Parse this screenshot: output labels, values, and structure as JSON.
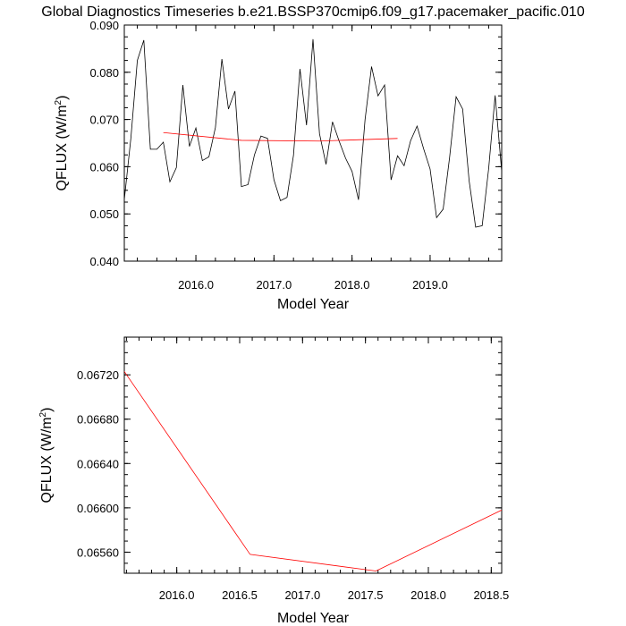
{
  "chart_data": [
    {
      "type": "line",
      "title": "Global Diagnostics Timeseries b.e21.BSSP370cmip6.f09_g17.pacemaker_pacific.010",
      "xlabel": "Model Year",
      "ylabel": "QFLUX (W/m",
      "ylabel_sup": "2",
      "ylabel_close": ")",
      "xlim": [
        2015.083,
        2019.917
      ],
      "ylim": [
        0.04,
        0.09
      ],
      "xticks": [
        2016.0,
        2017.0,
        2018.0,
        2019.0
      ],
      "xtick_labels": [
        "2016.0",
        "2017.0",
        "2018.0",
        "2019.0"
      ],
      "yticks": [
        0.04,
        0.05,
        0.06,
        0.07,
        0.08,
        0.09
      ],
      "ytick_labels": [
        "0.040",
        "0.050",
        "0.060",
        "0.070",
        "0.080",
        "0.090"
      ],
      "series": [
        {
          "color": "#000000",
          "x": [
            2015.083,
            2015.167,
            2015.25,
            2015.333,
            2015.417,
            2015.5,
            2015.583,
            2015.667,
            2015.75,
            2015.833,
            2015.917,
            2016.0,
            2016.083,
            2016.167,
            2016.25,
            2016.333,
            2016.417,
            2016.5,
            2016.583,
            2016.667,
            2016.75,
            2016.833,
            2016.917,
            2017.0,
            2017.083,
            2017.167,
            2017.25,
            2017.333,
            2017.417,
            2017.5,
            2017.583,
            2017.667,
            2017.75,
            2017.833,
            2017.917,
            2018.0,
            2018.083,
            2018.167,
            2018.25,
            2018.333,
            2018.417,
            2018.5,
            2018.583,
            2018.667,
            2018.75,
            2018.833,
            2018.917,
            2019.0,
            2019.083,
            2019.167,
            2019.25,
            2019.333,
            2019.417,
            2019.5,
            2019.583,
            2019.667,
            2019.75,
            2019.833,
            2019.917
          ],
          "values": [
            0.053,
            0.066,
            0.0825,
            0.0868,
            0.0637,
            0.0637,
            0.0652,
            0.0568,
            0.0598,
            0.0773,
            0.0643,
            0.0682,
            0.0613,
            0.0621,
            0.0683,
            0.0828,
            0.0722,
            0.076,
            0.0558,
            0.0562,
            0.0625,
            0.0665,
            0.066,
            0.0572,
            0.0528,
            0.0535,
            0.0624,
            0.0807,
            0.0688,
            0.087,
            0.067,
            0.0605,
            0.0695,
            0.0655,
            0.0618,
            0.059,
            0.053,
            0.07,
            0.0812,
            0.075,
            0.0773,
            0.0572,
            0.0623,
            0.0602,
            0.0655,
            0.0686,
            0.0638,
            0.0595,
            0.0492,
            0.051,
            0.062,
            0.0748,
            0.0722,
            0.057,
            0.0472,
            0.0475,
            0.0596,
            0.0751,
            0.059
          ]
        },
        {
          "color": "#ff0000",
          "x": [
            2015.583,
            2016.583,
            2017.583,
            2018.583
          ],
          "values": [
            0.06723,
            0.06558,
            0.06543,
            0.06598
          ]
        }
      ]
    },
    {
      "type": "line",
      "xlabel": "Model Year",
      "ylabel": "QFLUX (W/m",
      "ylabel_sup": "2",
      "ylabel_close": ")",
      "xlim": [
        2015.583,
        2018.583
      ],
      "ylim": [
        0.06541,
        0.06754
      ],
      "xticks": [
        2016.0,
        2016.5,
        2017.0,
        2017.5,
        2018.0,
        2018.5
      ],
      "xtick_labels": [
        "2016.0",
        "2016.5",
        "2017.0",
        "2017.5",
        "2018.0",
        "2018.5"
      ],
      "yticks": [
        0.0656,
        0.066,
        0.0664,
        0.0668,
        0.0672
      ],
      "ytick_labels": [
        "0.06560",
        "0.06600",
        "0.06640",
        "0.06680",
        "0.06720"
      ],
      "series": [
        {
          "color": "#ff0000",
          "x": [
            2015.583,
            2016.583,
            2017.583,
            2018.583
          ],
          "values": [
            0.06723,
            0.06558,
            0.06543,
            0.06598
          ]
        }
      ]
    }
  ]
}
